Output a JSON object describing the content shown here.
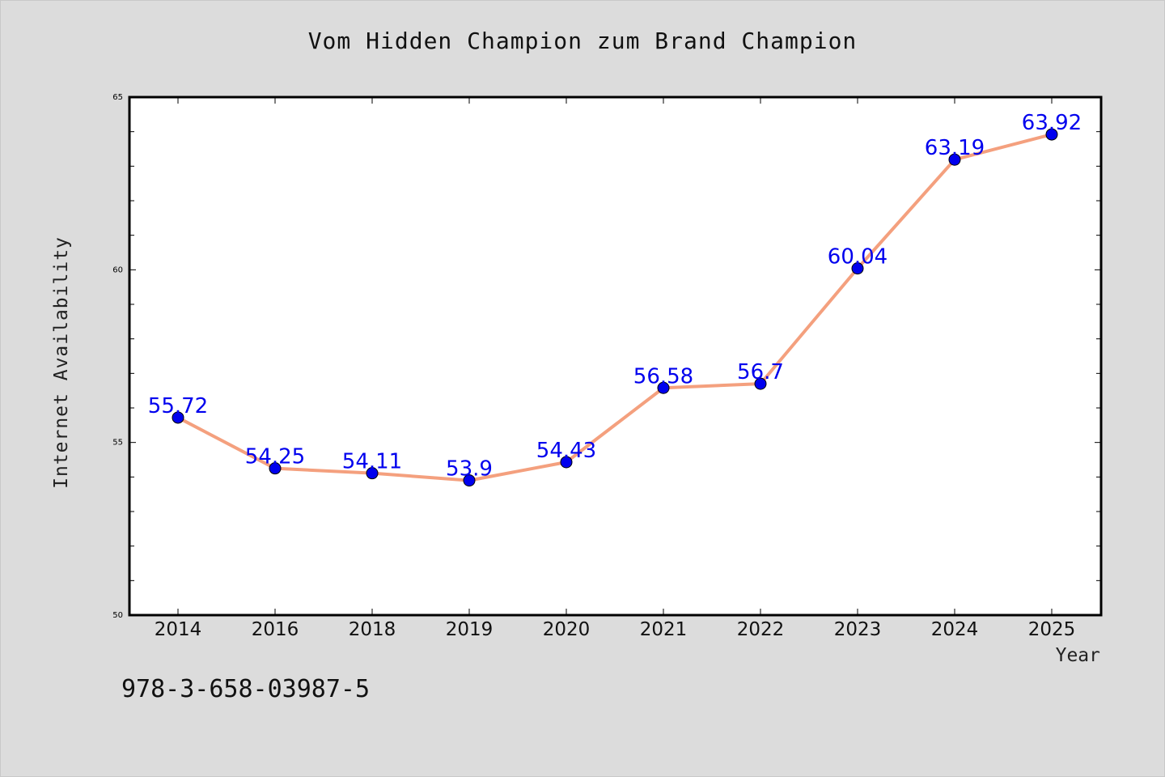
{
  "chart_data": {
    "type": "line",
    "title": "Vom Hidden Champion zum Brand Champion",
    "xlabel": "Year",
    "ylabel": "Internet Availability",
    "categories": [
      "2014",
      "2016",
      "2018",
      "2019",
      "2020",
      "2021",
      "2022",
      "2023",
      "2024",
      "2025"
    ],
    "series": [
      {
        "values": [
          55.72,
          54.25,
          54.11,
          53.9,
          54.43,
          56.58,
          56.7,
          60.04,
          63.19,
          63.92
        ],
        "data_labels": [
          "55.72",
          "54.25",
          "54.11",
          "53.9",
          "54.43",
          "56.58",
          "56.7",
          "60.04",
          "63.19",
          "63.92"
        ]
      }
    ],
    "ylim": [
      50,
      65
    ],
    "yticks": [
      "50",
      "55",
      "60",
      "65"
    ],
    "grid": false,
    "colors": {
      "line": "#f4a07e",
      "marker": "#0000ee",
      "label": "#0000ee",
      "background": "#dcdcdc",
      "plot_background": "#ffffff"
    }
  },
  "footer_text": "978-3-658-03987-5"
}
